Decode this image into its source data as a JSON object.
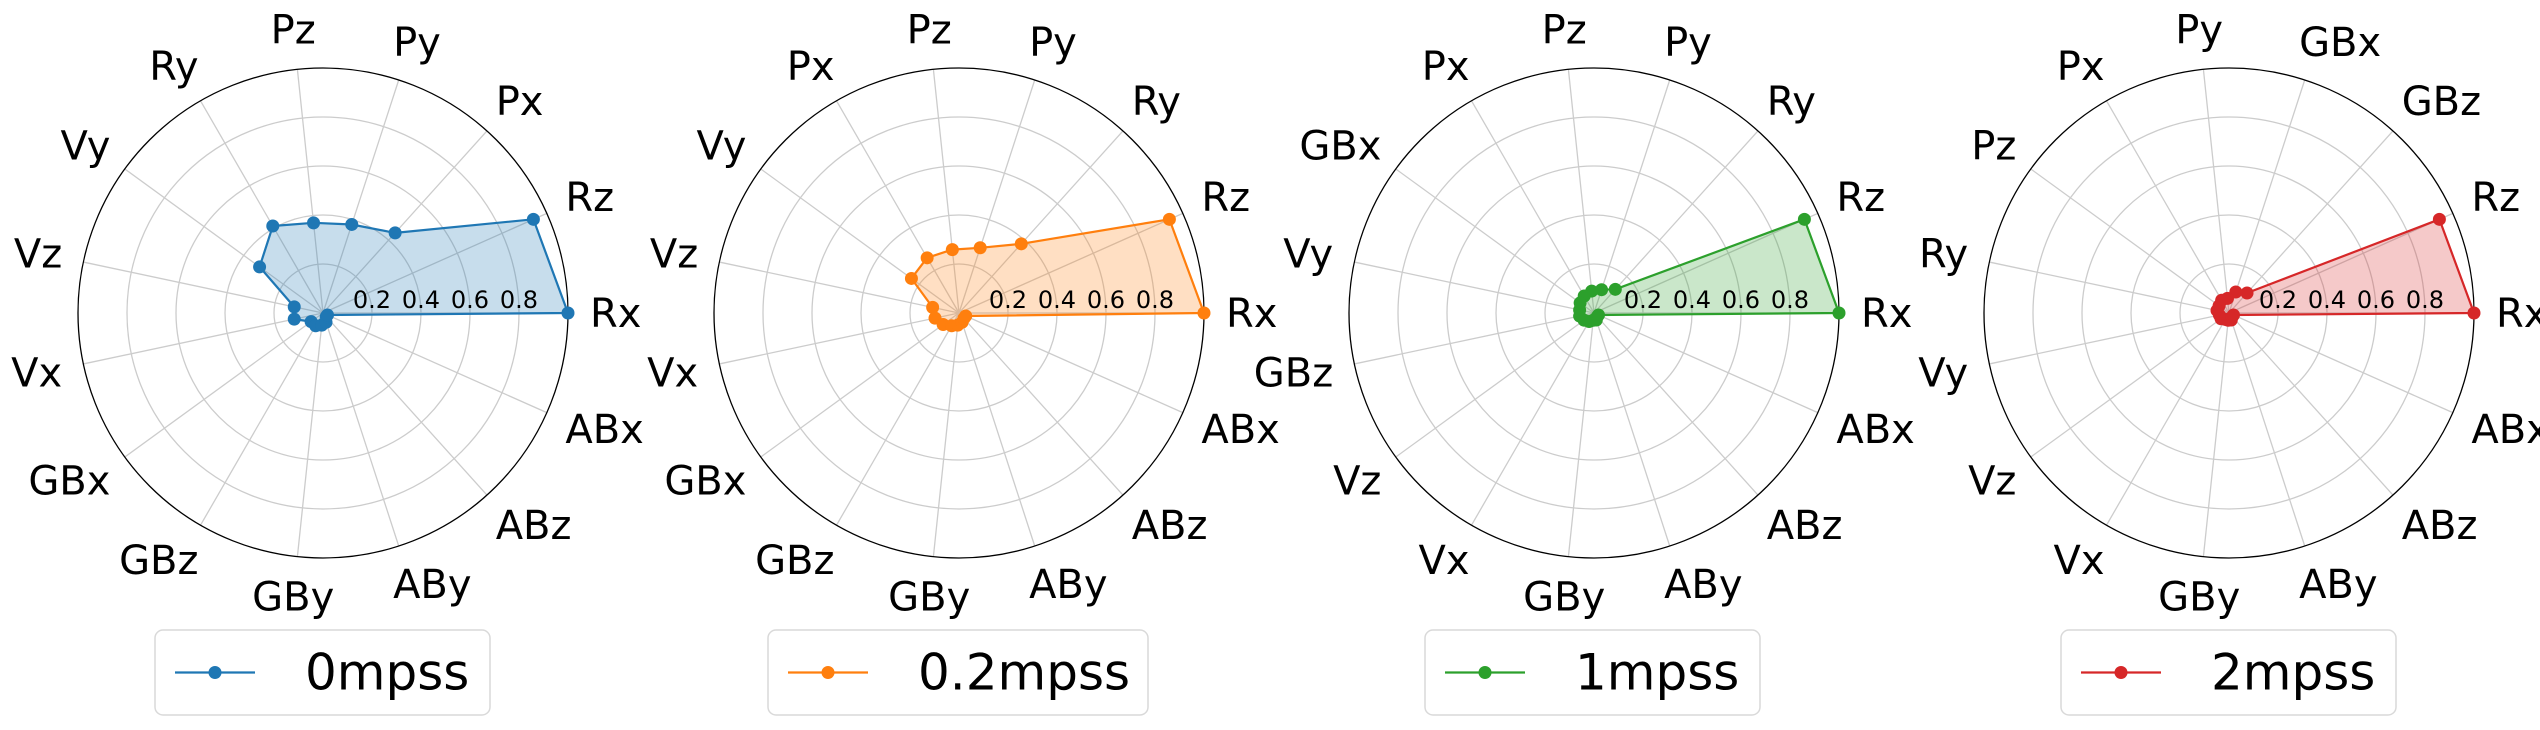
{
  "chart_data": [
    {
      "type": "radar",
      "categories": [
        "Rx",
        "Rz",
        "Px",
        "Py",
        "Pz",
        "Ry",
        "Vy",
        "Vz",
        "Vx",
        "GBx",
        "GBz",
        "GBy",
        "ABy",
        "ABz",
        "ABx"
      ],
      "series": [
        {
          "name": "0mpss",
          "values": [
            1.0,
            0.94,
            0.44,
            0.38,
            0.37,
            0.41,
            0.32,
            0.12,
            0.12,
            0.06,
            0.06,
            0.05,
            0.04,
            0.02,
            0.02
          ]
        }
      ],
      "rlim": [
        0,
        1
      ],
      "rticks": [
        "0.2",
        "0.4",
        "0.6",
        "0.8"
      ],
      "color": "#1f77b4",
      "legend": "bottom"
    },
    {
      "type": "radar",
      "categories": [
        "Rx",
        "Rz",
        "Ry",
        "Py",
        "Pz",
        "Px",
        "Vy",
        "Vz",
        "Vx",
        "GBx",
        "GBz",
        "GBy",
        "ABy",
        "ABz",
        "ABx"
      ],
      "series": [
        {
          "name": "0.2mpss",
          "values": [
            1.0,
            0.94,
            0.38,
            0.28,
            0.26,
            0.26,
            0.24,
            0.11,
            0.1,
            0.08,
            0.06,
            0.05,
            0.04,
            0.03,
            0.03
          ]
        }
      ],
      "rlim": [
        0,
        1
      ],
      "rticks": [
        "0.2",
        "0.4",
        "0.6",
        "0.8"
      ],
      "color": "#ff7f0e",
      "legend": "bottom"
    },
    {
      "type": "radar",
      "categories": [
        "Rx",
        "Rz",
        "Ry",
        "Py",
        "Pz",
        "Px",
        "GBx",
        "Vy",
        "GBz",
        "Vz",
        "Vx",
        "GBy",
        "ABy",
        "ABz",
        "ABx"
      ],
      "series": [
        {
          "name": "1mpss",
          "values": [
            1.0,
            0.94,
            0.13,
            0.1,
            0.09,
            0.08,
            0.07,
            0.06,
            0.06,
            0.05,
            0.04,
            0.03,
            0.03,
            0.02,
            0.02
          ]
        }
      ],
      "rlim": [
        0,
        1
      ],
      "rticks": [
        "0.2",
        "0.4",
        "0.6",
        "0.8"
      ],
      "color": "#2ca02c",
      "legend": "bottom"
    },
    {
      "type": "radar",
      "categories": [
        "Rx",
        "Rz",
        "GBz",
        "GBx",
        "Py",
        "Px",
        "Pz",
        "Ry",
        "Vy",
        "Vz",
        "Vx",
        "GBy",
        "ABy",
        "ABz",
        "ABx"
      ],
      "series": [
        {
          "name": "2mpss",
          "values": [
            1.0,
            0.94,
            0.11,
            0.09,
            0.06,
            0.06,
            0.05,
            0.05,
            0.04,
            0.04,
            0.03,
            0.03,
            0.03,
            0.02,
            0.02
          ]
        }
      ],
      "rlim": [
        0,
        1
      ],
      "rticks": [
        "0.2",
        "0.4",
        "0.6",
        "0.8"
      ],
      "color": "#d62728",
      "legend": "bottom"
    }
  ]
}
